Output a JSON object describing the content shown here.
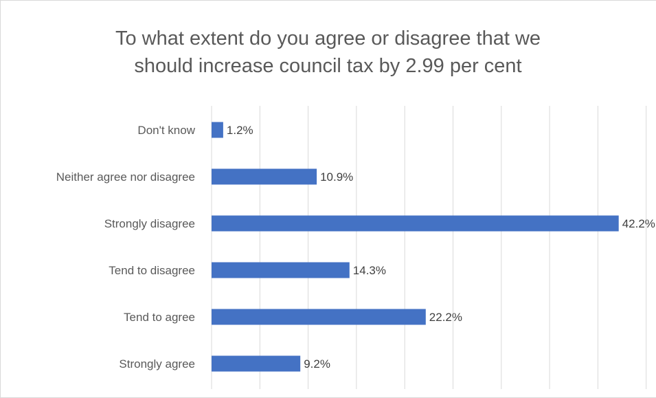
{
  "chart_data": {
    "type": "bar",
    "orientation": "horizontal",
    "title_lines": [
      "To what extent do you agree or disagree that we",
      "should increase council tax by 2.99 per cent"
    ],
    "categories": [
      "Don't know",
      "Neither agree nor disagree",
      "Strongly disagree",
      "Tend to disagree",
      "Tend to agree",
      "Strongly agree"
    ],
    "values": [
      1.2,
      10.9,
      42.2,
      14.3,
      22.2,
      9.2
    ],
    "data_labels": [
      "1.2%",
      "10.9%",
      "42.2%",
      "14.3%",
      "22.2%",
      "9.2%"
    ],
    "unit": "%",
    "xlim": [
      0,
      45
    ],
    "major_gridlines": true,
    "legend": "none",
    "bar_color": "#4472c4"
  }
}
